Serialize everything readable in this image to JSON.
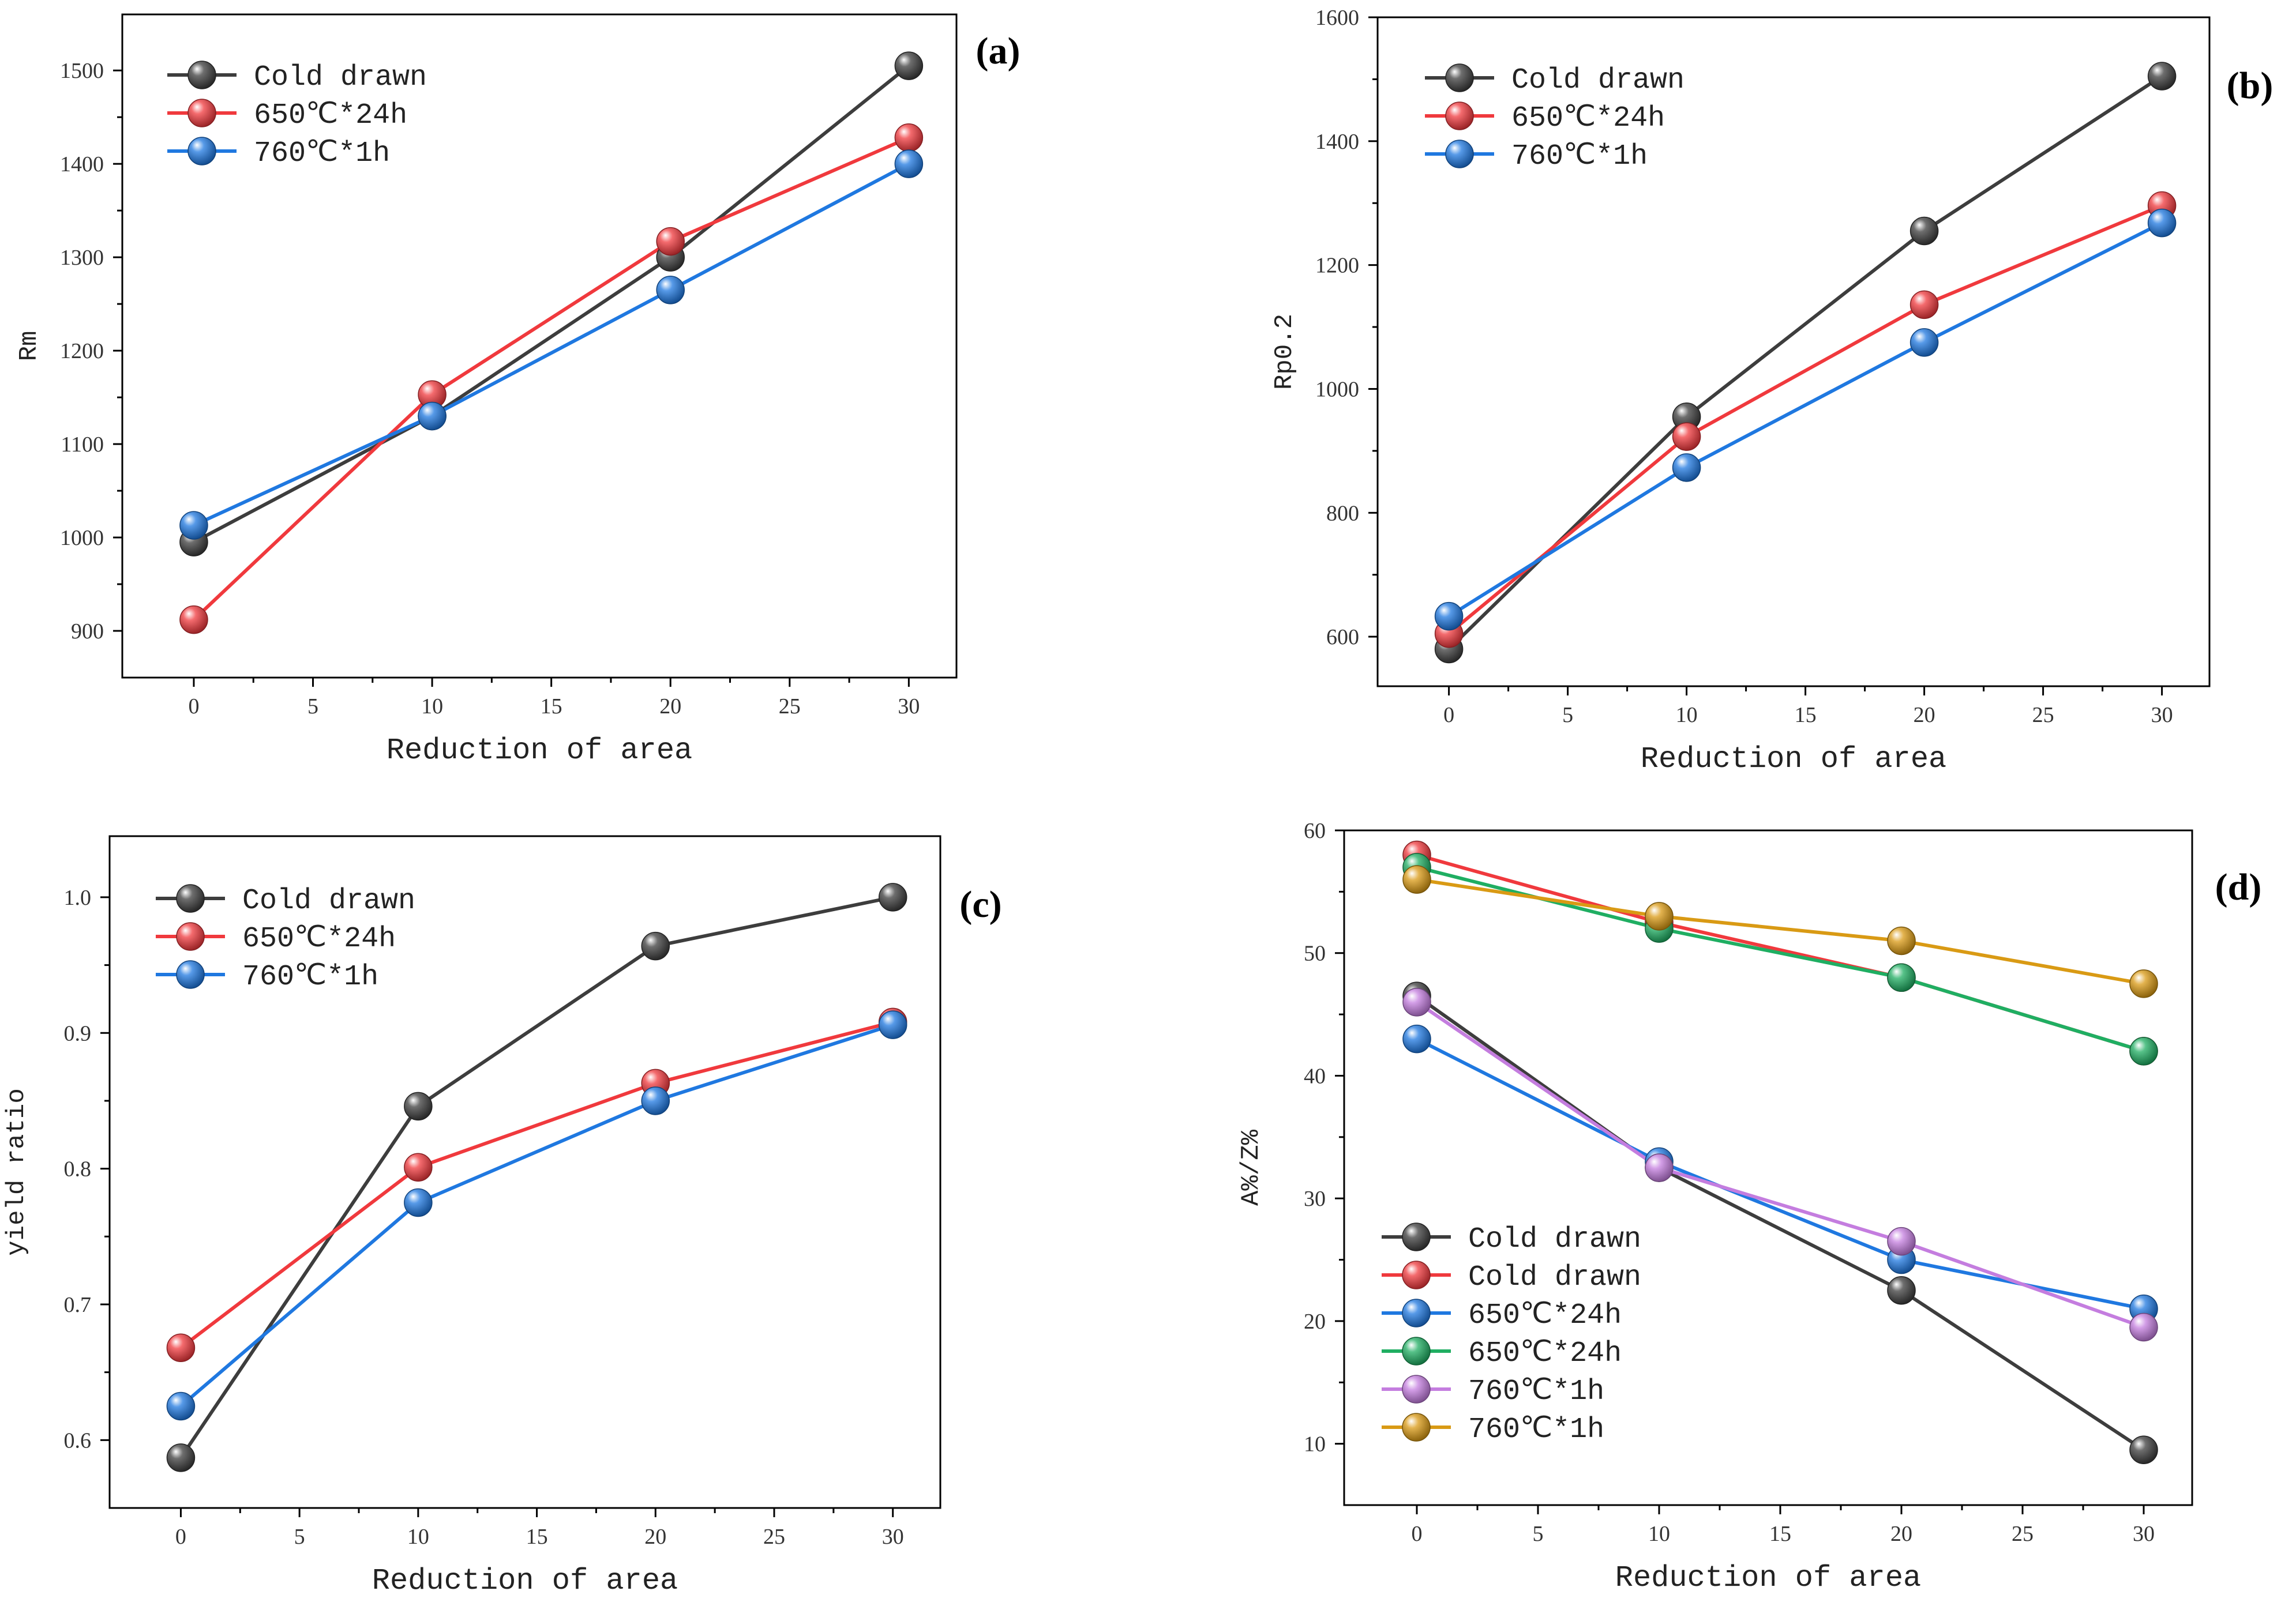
{
  "chart_data": [
    {
      "type": "line",
      "panel": "(a)",
      "title": "",
      "xlabel": "Reduction of area",
      "ylabel": "Rm",
      "xlim": [
        -3,
        32
      ],
      "ylim": [
        850,
        1560
      ],
      "xticks": [
        0,
        5,
        10,
        15,
        20,
        25,
        30
      ],
      "yticks": [
        900,
        1000,
        1100,
        1200,
        1300,
        1400,
        1500
      ],
      "x": [
        0,
        10,
        20,
        30
      ],
      "legend": "top-left",
      "grid": false,
      "series": [
        {
          "name": "Cold drawn",
          "color": "#3d3d3d",
          "values": [
            995,
            1130,
            1300,
            1505
          ]
        },
        {
          "name": "650℃*24h",
          "color": "#f0393d",
          "values": [
            912,
            1153,
            1317,
            1428
          ]
        },
        {
          "name": "760℃*1h",
          "color": "#1f78e0",
          "values": [
            1013,
            1130,
            1265,
            1400
          ]
        }
      ]
    },
    {
      "type": "line",
      "panel": "(b)",
      "title": "",
      "xlabel": "Reduction of area",
      "ylabel": "Rp0.2",
      "xlim": [
        -3,
        32
      ],
      "ylim": [
        520,
        1600
      ],
      "xticks": [
        0,
        5,
        10,
        15,
        20,
        25,
        30
      ],
      "yticks": [
        600,
        800,
        1000,
        1200,
        1400,
        1600
      ],
      "x": [
        0,
        10,
        20,
        30
      ],
      "legend": "top-left",
      "grid": false,
      "series": [
        {
          "name": "Cold drawn",
          "color": "#3d3d3d",
          "values": [
            580,
            955,
            1255,
            1505
          ]
        },
        {
          "name": "650℃*24h",
          "color": "#f0393d",
          "values": [
            605,
            923,
            1136,
            1296
          ]
        },
        {
          "name": "760℃*1h",
          "color": "#1f78e0",
          "values": [
            633,
            873,
            1075,
            1268
          ]
        }
      ]
    },
    {
      "type": "line",
      "panel": "(c)",
      "title": "",
      "xlabel": "Reduction of area",
      "ylabel": "yield ratio",
      "xlim": [
        -3,
        32
      ],
      "ylim": [
        0.55,
        1.045
      ],
      "xticks": [
        0,
        5,
        10,
        15,
        20,
        25,
        30
      ],
      "yticks": [
        0.6,
        0.7,
        0.8,
        0.9,
        1.0
      ],
      "ytick_labels": [
        "0.6",
        "0.7",
        "0.8",
        "0.9",
        "1.0"
      ],
      "x": [
        0,
        10,
        20,
        30
      ],
      "legend": "top-left",
      "grid": false,
      "series": [
        {
          "name": "Cold drawn",
          "color": "#3d3d3d",
          "values": [
            0.587,
            0.846,
            0.964,
            1.0
          ]
        },
        {
          "name": "650℃*24h",
          "color": "#f0393d",
          "values": [
            0.668,
            0.801,
            0.863,
            0.908
          ]
        },
        {
          "name": "760℃*1h",
          "color": "#1f78e0",
          "values": [
            0.625,
            0.775,
            0.85,
            0.906
          ]
        }
      ]
    },
    {
      "type": "line",
      "panel": "(d)",
      "title": "",
      "xlabel": "Reduction of area",
      "ylabel": "A%/Z%",
      "xlim": [
        -3,
        32
      ],
      "ylim": [
        5,
        60
      ],
      "xticks": [
        0,
        5,
        10,
        15,
        20,
        25,
        30
      ],
      "yticks": [
        10,
        20,
        30,
        40,
        50,
        60
      ],
      "x": [
        0,
        10,
        20,
        30
      ],
      "legend": "bottom-left",
      "grid": false,
      "series": [
        {
          "name": "Cold drawn",
          "color": "#3d3d3d",
          "values": [
            46.5,
            32.5,
            22.5,
            9.5
          ]
        },
        {
          "name": "Cold drawn",
          "color": "#f0393d",
          "values": [
            58,
            52.5,
            48,
            42
          ]
        },
        {
          "name": "650℃*24h",
          "color": "#1f78e0",
          "values": [
            43,
            33,
            25,
            21
          ]
        },
        {
          "name": "650℃*24h",
          "color": "#1fae62",
          "values": [
            57,
            52,
            48,
            42
          ]
        },
        {
          "name": "760℃*1h",
          "color": "#c47ddf",
          "values": [
            46,
            32.5,
            26.5,
            19.5
          ]
        },
        {
          "name": "760℃*1h",
          "color": "#d99a14",
          "values": [
            56,
            53,
            51,
            47.5
          ]
        }
      ]
    }
  ]
}
